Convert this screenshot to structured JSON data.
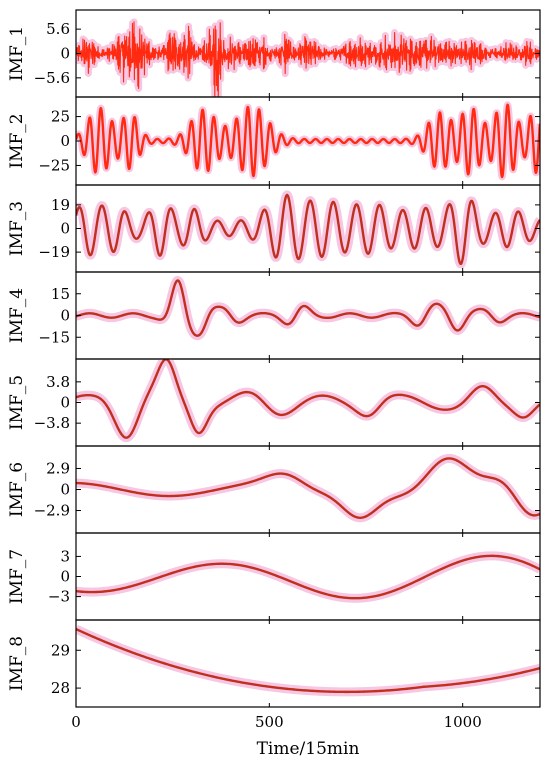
{
  "chart_data": {
    "type": "line",
    "xlabel": "Time/15min",
    "xlim": [
      0,
      1200
    ],
    "xticks": [
      0,
      500,
      1000
    ],
    "line_color": "#c0301e",
    "noise_color": "#ff2a10",
    "band_color": "#f7c6e2",
    "panels": [
      {
        "name": "IMF_1",
        "ylim": [
          -10,
          10
        ],
        "yticks": [
          5.6,
          0,
          -5.6
        ],
        "ytick_labels": [
          "5.6",
          "0",
          "−5.6"
        ]
      },
      {
        "name": "IMF_2",
        "ylim": [
          -45,
          45
        ],
        "yticks": [
          25,
          0,
          -25
        ],
        "ytick_labels": [
          "25",
          "0",
          "−25"
        ]
      },
      {
        "name": "IMF_3",
        "ylim": [
          -35,
          35
        ],
        "yticks": [
          19,
          0,
          -19
        ],
        "ytick_labels": [
          "19",
          "0",
          "−19"
        ]
      },
      {
        "name": "IMF_4",
        "ylim": [
          -30,
          30
        ],
        "yticks": [
          15,
          0,
          -15
        ],
        "ytick_labels": [
          "15",
          "0",
          "−15"
        ]
      },
      {
        "name": "IMF_5",
        "ylim": [
          -8,
          8
        ],
        "yticks": [
          3.8,
          0,
          -3.8
        ],
        "ytick_labels": [
          "3.8",
          "0",
          "−3.8"
        ]
      },
      {
        "name": "IMF_6",
        "ylim": [
          -6,
          6
        ],
        "yticks": [
          2.9,
          0,
          -2.9
        ],
        "ytick_labels": [
          "2.9",
          "0",
          "−2.9"
        ]
      },
      {
        "name": "IMF_7",
        "ylim": [
          -6.5,
          6.5
        ],
        "yticks": [
          3,
          0,
          -3
        ],
        "ytick_labels": [
          "3",
          "0",
          "−3"
        ]
      },
      {
        "name": "IMF_8",
        "ylim": [
          27.5,
          29.8
        ],
        "yticks": [
          29,
          28
        ],
        "ytick_labels": [
          "29",
          "28"
        ]
      }
    ]
  }
}
